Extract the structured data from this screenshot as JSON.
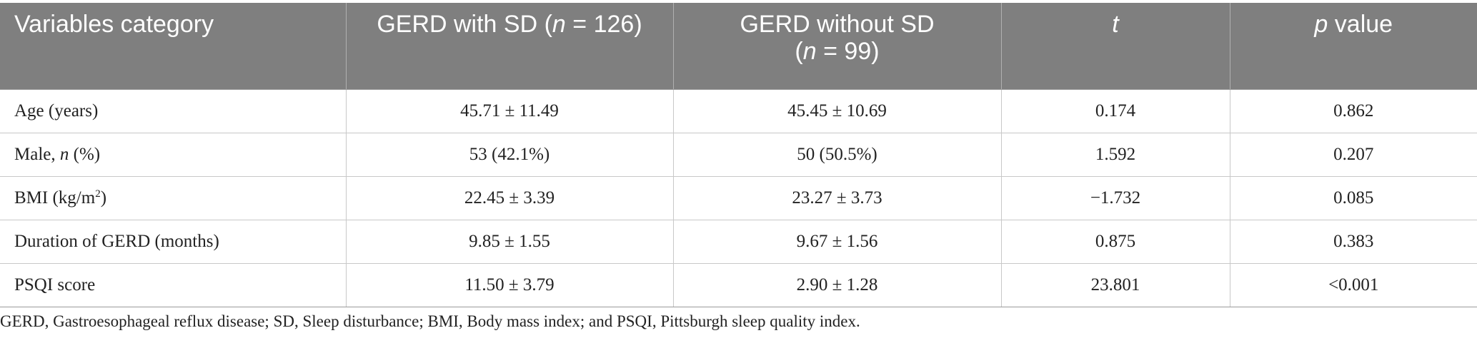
{
  "table": {
    "headers": {
      "variables": "Variables category",
      "with_sd_prefix": "GERD with SD (",
      "with_sd_n": "n",
      "with_sd_suffix": " = 126)",
      "without_sd_line1": "GERD without SD",
      "without_sd_open": "(",
      "without_sd_n": "n",
      "without_sd_suffix": " = 99)",
      "t": "t",
      "p_italic": "p",
      "p_rest": " value"
    },
    "rows": [
      {
        "variable": "Age (years)",
        "with_sd": "45.71 ± 11.49",
        "without_sd": "45.45 ± 10.69",
        "t": "0.174",
        "p": "0.862"
      },
      {
        "variable_prefix": "Male, ",
        "variable_italic": "n",
        "variable_suffix": " (%)",
        "with_sd": "53 (42.1%)",
        "without_sd": "50 (50.5%)",
        "t": "1.592",
        "p": "0.207"
      },
      {
        "variable_prefix": "BMI (kg/m",
        "variable_sup": "2",
        "variable_suffix": ")",
        "with_sd": "22.45 ± 3.39",
        "without_sd": "23.27 ± 3.73",
        "t": "−1.732",
        "p": "0.085"
      },
      {
        "variable": "Duration of GERD (months)",
        "with_sd": "9.85 ± 1.55",
        "without_sd": "9.67 ± 1.56",
        "t": "0.875",
        "p": "0.383"
      },
      {
        "variable": "PSQI score",
        "with_sd": "11.50 ± 3.79",
        "without_sd": "2.90 ± 1.28",
        "t": "23.801",
        "p": "<0.001"
      }
    ]
  },
  "footnote": "GERD, Gastroesophageal reflux disease; SD, Sleep disturbance; BMI, Body mass index; and PSQI, Pittsburgh sleep quality index.",
  "colors": {
    "header_bg": "#7f7f7f",
    "header_text": "#ffffff",
    "grid": "#c8c8c8"
  }
}
